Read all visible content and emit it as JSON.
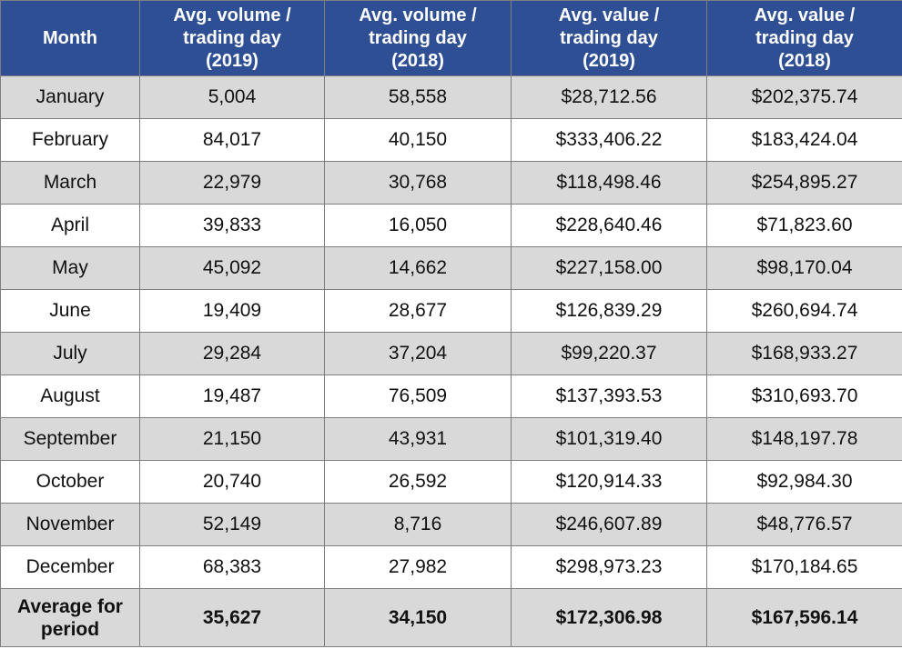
{
  "table": {
    "header": [
      "Month",
      "Avg. volume / trading day (2019)",
      "Avg. volume / trading day (2018)",
      "Avg. value / trading day (2019)",
      "Avg. value / trading day (2018)"
    ],
    "rows": [
      [
        "January",
        "5,004",
        "58,558",
        "$28,712.56",
        "$202,375.74"
      ],
      [
        "February",
        "84,017",
        "40,150",
        "$333,406.22",
        "$183,424.04"
      ],
      [
        "March",
        "22,979",
        "30,768",
        "$118,498.46",
        "$254,895.27"
      ],
      [
        "April",
        "39,833",
        "16,050",
        "$228,640.46",
        "$71,823.60"
      ],
      [
        "May",
        "45,092",
        "14,662",
        "$227,158.00",
        "$98,170.04"
      ],
      [
        "June",
        "19,409",
        "28,677",
        "$126,839.29",
        "$260,694.74"
      ],
      [
        "July",
        "29,284",
        "37,204",
        "$99,220.37",
        "$168,933.27"
      ],
      [
        "August",
        "19,487",
        "76,509",
        "$137,393.53",
        "$310,693.70"
      ],
      [
        "September",
        "21,150",
        "43,931",
        "$101,319.40",
        "$148,197.78"
      ],
      [
        "October",
        "20,740",
        "26,592",
        "$120,914.33",
        "$92,984.30"
      ],
      [
        "November",
        "52,149",
        "8,716",
        "$246,607.89",
        "$48,776.57"
      ],
      [
        "December",
        "68,383",
        "27,982",
        "$298,973.23",
        "$170,184.65"
      ]
    ],
    "footer": [
      "Average for period",
      "35,627",
      "34,150",
      "$172,306.98",
      "$167,596.14"
    ]
  }
}
